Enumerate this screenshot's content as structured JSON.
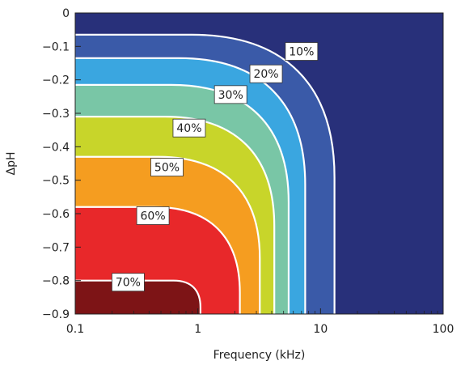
{
  "chart_data": {
    "type": "contour",
    "title": "",
    "xlabel": "Frequency (kHz)",
    "ylabel": "ΔpH",
    "x_scale": "log",
    "xlim": [
      0.1,
      100
    ],
    "ylim": [
      -0.9,
      0
    ],
    "x_ticks": [
      {
        "value": 0.1,
        "label": "0.1"
      },
      {
        "value": 1,
        "label": "1"
      },
      {
        "value": 10,
        "label": "10"
      },
      {
        "value": 100,
        "label": "100"
      }
    ],
    "y_ticks": [
      {
        "value": 0,
        "label": "0"
      },
      {
        "value": -0.1,
        "label": "−0.1"
      },
      {
        "value": -0.2,
        "label": "−0.2"
      },
      {
        "value": -0.3,
        "label": "−0.3"
      },
      {
        "value": -0.4,
        "label": "−0.4"
      },
      {
        "value": -0.5,
        "label": "−0.5"
      },
      {
        "value": -0.6,
        "label": "−0.6"
      },
      {
        "value": -0.7,
        "label": "−0.7"
      },
      {
        "value": -0.8,
        "label": "−0.8"
      },
      {
        "value": -0.9,
        "label": "−0.9"
      }
    ],
    "background_color": "#28307a",
    "levels": [
      {
        "label": "10%",
        "color": "#3a5aa8",
        "y_top": -0.065,
        "x_cutoff": 13.0,
        "label_x": 7.0,
        "label_y": -0.115
      },
      {
        "label": "20%",
        "color": "#3aa6e0",
        "y_top": -0.135,
        "x_cutoff": 7.5,
        "label_x": 3.6,
        "label_y": -0.182
      },
      {
        "label": "30%",
        "color": "#79c6a6",
        "y_top": -0.215,
        "x_cutoff": 5.5,
        "label_x": 1.85,
        "label_y": -0.244
      },
      {
        "label": "40%",
        "color": "#c8d52a",
        "y_top": -0.31,
        "x_cutoff": 4.2,
        "label_x": 0.85,
        "label_y": -0.344
      },
      {
        "label": "50%",
        "color": "#f59d20",
        "y_top": -0.43,
        "x_cutoff": 3.2,
        "label_x": 0.56,
        "label_y": -0.461
      },
      {
        "label": "60%",
        "color": "#e8282a",
        "y_top": -0.58,
        "x_cutoff": 2.2,
        "label_x": 0.43,
        "label_y": -0.606
      },
      {
        "label": "70%",
        "color": "#7d1416",
        "y_top": -0.8,
        "x_cutoff": 1.05,
        "label_x": 0.27,
        "label_y": -0.805
      }
    ],
    "grid": false,
    "legend": "none"
  }
}
